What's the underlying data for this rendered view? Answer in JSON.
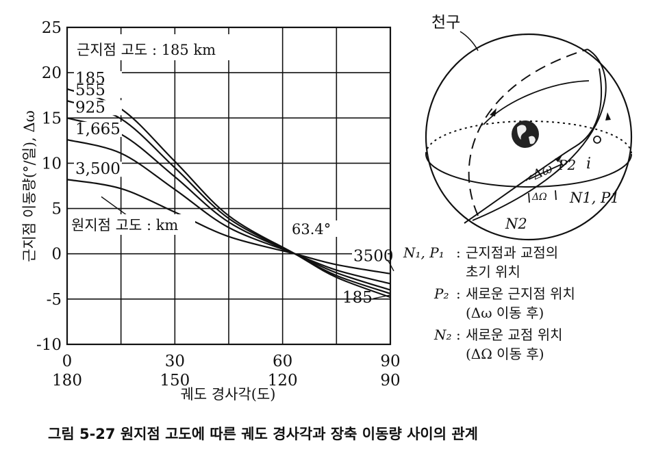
{
  "chart_data": {
    "type": "line",
    "title": "",
    "annotation": "근지점 고도 : 185 km",
    "xlabel": "궤도 경사각(도)",
    "ylabel": "근지점 이동량(°/일), Δω",
    "xlim": [
      0,
      90
    ],
    "ylim": [
      -10,
      25
    ],
    "x_ticks": [
      0,
      30,
      60,
      90
    ],
    "x_ticks_secondary": [
      180,
      150,
      120,
      90
    ],
    "y_ticks": [
      25,
      20,
      15,
      10,
      5,
      0,
      -5,
      -10
    ],
    "grid": true,
    "crossing_label": "63.4°",
    "series_header": "원지점 고도 : km",
    "series": [
      {
        "name": "185",
        "x": [
          0,
          15,
          30,
          45,
          63.4,
          75,
          90
        ],
        "y": [
          18.2,
          16.0,
          10.2,
          4.2,
          0,
          -2.6,
          -4.8
        ]
      },
      {
        "name": "555",
        "x": [
          0,
          15,
          30,
          45,
          63.4,
          75,
          90
        ],
        "y": [
          16.9,
          14.9,
          9.5,
          3.9,
          0,
          -2.4,
          -4.4
        ]
      },
      {
        "name": "925",
        "x": [
          0,
          15,
          30,
          45,
          63.4,
          75,
          90
        ],
        "y": [
          15.0,
          13.2,
          8.5,
          3.5,
          0,
          -2.1,
          -4.0
        ]
      },
      {
        "name": "1,665",
        "x": [
          0,
          15,
          30,
          45,
          63.4,
          75,
          90
        ],
        "y": [
          12.6,
          11.1,
          7.1,
          2.9,
          0,
          -1.8,
          -3.3
        ]
      },
      {
        "name": "3,500",
        "x": [
          0,
          15,
          30,
          45,
          63.4,
          75,
          90
        ],
        "y": [
          8.2,
          7.2,
          4.6,
          1.9,
          0,
          -1.2,
          -2.2
        ]
      }
    ],
    "right_labels": {
      "top": "3500",
      "bottom": "185"
    }
  },
  "diagram": {
    "celestial_sphere": "천구",
    "labels": {
      "p2": "P2",
      "i": "i",
      "n1p1": "N1, P1",
      "n2": "N2",
      "delta_omega": "Δω",
      "delta_big_omega": "ΔΩ"
    },
    "legend": [
      {
        "key": "N₁, P₁",
        "text": "근지점과 교점의"
      },
      {
        "key": "",
        "text": "초기 위치"
      },
      {
        "key": "P₂",
        "text": "새로운 근지점 위치"
      },
      {
        "key": "",
        "text": "(Δω 이동 후)"
      },
      {
        "key": "N₂",
        "text": "새로운 교점 위치"
      },
      {
        "key": "",
        "text": "(ΔΩ 이동 후)"
      }
    ]
  },
  "caption": "그림 5-27  원지점 고도에 따른 궤도 경사각과 장축 이동량 사이의 관계"
}
